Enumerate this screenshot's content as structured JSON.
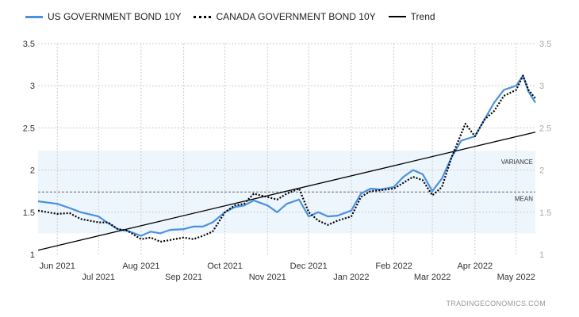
{
  "chart_data": {
    "type": "line",
    "title": "",
    "xlabel": "",
    "ylabel": "",
    "x_range": [
      "2021-05-18",
      "2022-05-15"
    ],
    "ylim": [
      1,
      3.5
    ],
    "yticks": [
      "1",
      "1.5",
      "2",
      "2.5",
      "3",
      "3.5"
    ],
    "xticks": [
      {
        "date": "2021-06-01",
        "label": "Jun 2021"
      },
      {
        "date": "2021-07-01",
        "label": "Jul 2021"
      },
      {
        "date": "2021-08-01",
        "label": "Aug 2021"
      },
      {
        "date": "2021-09-01",
        "label": "Sep 2021"
      },
      {
        "date": "2021-10-01",
        "label": "Oct 2021"
      },
      {
        "date": "2021-11-01",
        "label": "Nov 2021"
      },
      {
        "date": "2021-12-01",
        "label": "Dec 2021"
      },
      {
        "date": "2022-01-01",
        "label": "Jan 2022"
      },
      {
        "date": "2022-02-01",
        "label": "Feb 2022"
      },
      {
        "date": "2022-03-01",
        "label": "Mar 2022"
      },
      {
        "date": "2022-04-01",
        "label": "Apr 2022"
      },
      {
        "date": "2022-05-01",
        "label": "May 2022"
      }
    ],
    "grid": true,
    "legend_placement": "top-left",
    "series": [
      {
        "name": "US GOVERNMENT BOND 10Y",
        "color": "#4a90e2",
        "style": "solid",
        "x": [
          "2021-05-18",
          "2021-06-01",
          "2021-06-10",
          "2021-06-18",
          "2021-07-01",
          "2021-07-08",
          "2021-07-15",
          "2021-07-22",
          "2021-08-01",
          "2021-08-08",
          "2021-08-15",
          "2021-08-22",
          "2021-09-01",
          "2021-09-08",
          "2021-09-15",
          "2021-09-22",
          "2021-10-01",
          "2021-10-08",
          "2021-10-15",
          "2021-10-22",
          "2021-11-01",
          "2021-11-08",
          "2021-11-15",
          "2021-11-24",
          "2021-12-01",
          "2021-12-08",
          "2021-12-15",
          "2021-12-22",
          "2022-01-01",
          "2022-01-08",
          "2022-01-15",
          "2022-01-22",
          "2022-02-01",
          "2022-02-08",
          "2022-02-15",
          "2022-02-22",
          "2022-03-01",
          "2022-03-08",
          "2022-03-15",
          "2022-03-22",
          "2022-04-01",
          "2022-04-08",
          "2022-04-15",
          "2022-04-22",
          "2022-05-01",
          "2022-05-06",
          "2022-05-10",
          "2022-05-15"
        ],
        "values": [
          1.63,
          1.6,
          1.55,
          1.5,
          1.45,
          1.37,
          1.3,
          1.28,
          1.22,
          1.27,
          1.25,
          1.29,
          1.3,
          1.33,
          1.33,
          1.38,
          1.5,
          1.56,
          1.58,
          1.64,
          1.58,
          1.5,
          1.6,
          1.65,
          1.45,
          1.5,
          1.45,
          1.46,
          1.52,
          1.72,
          1.78,
          1.77,
          1.8,
          1.92,
          2.0,
          1.95,
          1.75,
          1.9,
          2.15,
          2.35,
          2.4,
          2.6,
          2.8,
          2.95,
          3.0,
          3.12,
          2.93,
          2.8
        ]
      },
      {
        "name": "CANADA GOVERNMENT BOND 10Y",
        "color": "#000000",
        "style": "dotted",
        "x": [
          "2021-05-18",
          "2021-06-01",
          "2021-06-10",
          "2021-06-18",
          "2021-07-01",
          "2021-07-08",
          "2021-07-15",
          "2021-07-22",
          "2021-08-01",
          "2021-08-08",
          "2021-08-15",
          "2021-08-22",
          "2021-09-01",
          "2021-09-08",
          "2021-09-15",
          "2021-09-22",
          "2021-10-01",
          "2021-10-08",
          "2021-10-15",
          "2021-10-22",
          "2021-11-01",
          "2021-11-08",
          "2021-11-15",
          "2021-11-24",
          "2021-12-01",
          "2021-12-08",
          "2021-12-15",
          "2021-12-22",
          "2022-01-01",
          "2022-01-08",
          "2022-01-15",
          "2022-01-22",
          "2022-02-01",
          "2022-02-08",
          "2022-02-15",
          "2022-02-22",
          "2022-03-01",
          "2022-03-08",
          "2022-03-15",
          "2022-03-25",
          "2022-04-01",
          "2022-04-08",
          "2022-04-15",
          "2022-04-22",
          "2022-05-01",
          "2022-05-06",
          "2022-05-10",
          "2022-05-15"
        ],
        "values": [
          1.52,
          1.48,
          1.49,
          1.42,
          1.38,
          1.38,
          1.3,
          1.28,
          1.18,
          1.2,
          1.15,
          1.17,
          1.2,
          1.18,
          1.22,
          1.27,
          1.5,
          1.58,
          1.6,
          1.72,
          1.68,
          1.65,
          1.72,
          1.78,
          1.5,
          1.4,
          1.35,
          1.4,
          1.45,
          1.68,
          1.75,
          1.76,
          1.78,
          1.85,
          1.92,
          1.88,
          1.7,
          1.8,
          2.15,
          2.55,
          2.4,
          2.6,
          2.7,
          2.88,
          2.95,
          3.12,
          2.95,
          2.85
        ]
      },
      {
        "name": "Trend",
        "color": "#000000",
        "style": "solid",
        "x": [
          "2021-05-18",
          "2022-05-15"
        ],
        "values": [
          1.05,
          2.45
        ]
      }
    ],
    "annotations": [
      {
        "type": "band",
        "label": "VARIANCE",
        "from": 1.25,
        "to": 2.23,
        "color": "#eef6fd"
      },
      {
        "type": "hline",
        "label": "MEAN",
        "value": 1.74
      }
    ]
  },
  "watermark": "TRADINGECONOMICS.COM"
}
